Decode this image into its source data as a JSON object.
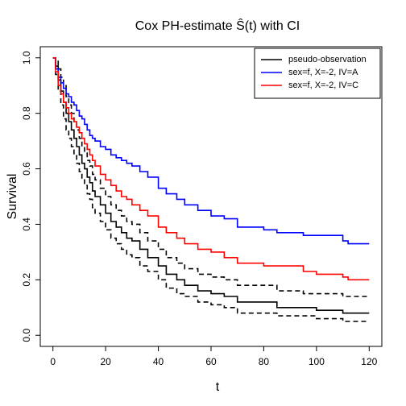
{
  "chart_data": {
    "type": "line",
    "step": true,
    "title": "Cox PH-estimate Ŝ(t) with CI",
    "x_label": "t",
    "y_label": "Survival",
    "x": [
      0,
      1,
      2,
      3,
      4,
      5,
      6,
      7,
      8,
      9,
      10,
      11,
      12,
      13,
      14,
      15,
      16,
      18,
      20,
      22,
      24,
      26,
      28,
      30,
      33,
      36,
      40,
      43,
      47,
      50,
      55,
      60,
      65,
      70,
      80,
      85,
      95,
      100,
      110,
      112,
      120
    ],
    "series": [
      {
        "name": "pseudo-observation",
        "color": "#000000",
        "dash": false,
        "values": [
          1,
          0.97,
          0.92,
          0.88,
          0.84,
          0.8,
          0.77,
          0.74,
          0.71,
          0.68,
          0.65,
          0.62,
          0.6,
          0.57,
          0.55,
          0.52,
          0.5,
          0.47,
          0.44,
          0.41,
          0.39,
          0.37,
          0.35,
          0.34,
          0.31,
          0.28,
          0.25,
          0.22,
          0.2,
          0.18,
          0.16,
          0.15,
          0.14,
          0.12,
          0.12,
          0.1,
          0.1,
          0.09,
          0.08,
          0.08,
          0.08
        ]
      },
      {
        "color": "#000000",
        "dash": true,
        "values": [
          1,
          0.99,
          0.96,
          0.93,
          0.9,
          0.86,
          0.83,
          0.8,
          0.77,
          0.74,
          0.71,
          0.68,
          0.66,
          0.63,
          0.61,
          0.58,
          0.56,
          0.53,
          0.5,
          0.47,
          0.45,
          0.43,
          0.41,
          0.4,
          0.37,
          0.34,
          0.31,
          0.28,
          0.26,
          0.24,
          0.22,
          0.21,
          0.2,
          0.18,
          0.18,
          0.16,
          0.15,
          0.15,
          0.14,
          0.14,
          0.14
        ]
      },
      {
        "color": "#000000",
        "dash": true,
        "values": [
          1,
          0.94,
          0.88,
          0.83,
          0.78,
          0.74,
          0.71,
          0.68,
          0.65,
          0.62,
          0.59,
          0.56,
          0.54,
          0.51,
          0.49,
          0.46,
          0.44,
          0.41,
          0.38,
          0.35,
          0.33,
          0.31,
          0.29,
          0.28,
          0.25,
          0.23,
          0.2,
          0.17,
          0.15,
          0.14,
          0.12,
          0.11,
          0.1,
          0.08,
          0.08,
          0.07,
          0.07,
          0.06,
          0.05,
          0.05,
          0.05
        ]
      },
      {
        "name": "sex=f, X=-2, IV=A",
        "color": "#0000ff",
        "dash": false,
        "values": [
          1,
          0.96,
          0.93,
          0.91,
          0.89,
          0.87,
          0.86,
          0.84,
          0.83,
          0.81,
          0.79,
          0.78,
          0.76,
          0.74,
          0.72,
          0.71,
          0.7,
          0.68,
          0.67,
          0.65,
          0.64,
          0.63,
          0.62,
          0.61,
          0.59,
          0.57,
          0.53,
          0.51,
          0.49,
          0.47,
          0.45,
          0.43,
          0.42,
          0.39,
          0.38,
          0.37,
          0.36,
          0.36,
          0.34,
          0.33,
          0.33
        ]
      },
      {
        "name": "sex=f, X=-2, IV=C",
        "color": "#ff0000",
        "dash": false,
        "values": [
          1,
          0.95,
          0.9,
          0.87,
          0.84,
          0.82,
          0.8,
          0.78,
          0.77,
          0.75,
          0.73,
          0.71,
          0.69,
          0.67,
          0.65,
          0.63,
          0.61,
          0.58,
          0.56,
          0.54,
          0.52,
          0.5,
          0.49,
          0.47,
          0.45,
          0.43,
          0.39,
          0.37,
          0.35,
          0.33,
          0.31,
          0.3,
          0.28,
          0.26,
          0.25,
          0.25,
          0.23,
          0.22,
          0.21,
          0.2,
          0.2
        ]
      }
    ],
    "xlim": [
      -4.8,
      124.8
    ],
    "xticks": [
      0,
      20,
      40,
      60,
      80,
      100,
      120
    ],
    "ylim": [
      -0.04,
      1.04
    ],
    "yticks": [
      {
        "value": 0,
        "label": "0.0"
      },
      0.2,
      0.4,
      0.6,
      0.8,
      {
        "value": 1,
        "label": "1.0"
      }
    ],
    "grid": false,
    "legend": "topright"
  }
}
